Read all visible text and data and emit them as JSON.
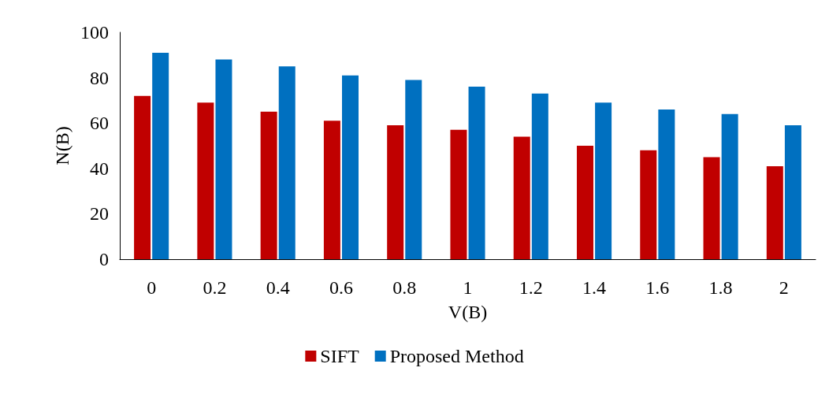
{
  "chart_data": {
    "type": "bar",
    "xlabel": "V(B)",
    "ylabel": "N(B)",
    "categories": [
      "0",
      "0.2",
      "0.4",
      "0.6",
      "0.8",
      "1",
      "1.2",
      "1.4",
      "1.6",
      "1.8",
      "2"
    ],
    "series": [
      {
        "name": "SIFT",
        "color": "#c00000",
        "values": [
          72,
          69,
          65,
          61,
          59,
          57,
          54,
          50,
          48,
          45,
          41
        ]
      },
      {
        "name": "Proposed Method",
        "color": "#0070c0",
        "values": [
          91,
          88,
          85,
          81,
          79,
          76,
          73,
          69,
          66,
          64,
          59
        ]
      }
    ],
    "ylim": [
      0,
      100
    ],
    "yticks": [
      0,
      20,
      40,
      60,
      80,
      100
    ],
    "grid": false,
    "legend": "bottom"
  }
}
